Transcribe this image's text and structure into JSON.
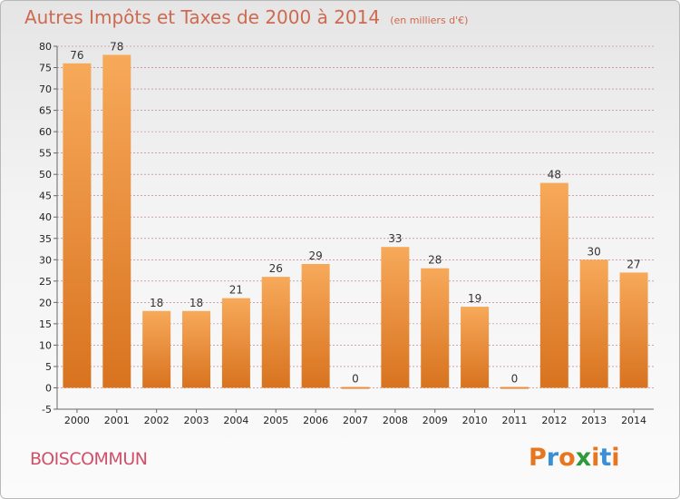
{
  "page": {
    "title": "Autres Impôts et Taxes de 2000 à 2014",
    "unit": "(en milliers d'€)",
    "commune": "BOISCOMMUN",
    "brand": "Proxiti",
    "brand_letters": [
      "P",
      "r",
      "o",
      "x",
      "i",
      "t",
      "i"
    ],
    "brand_colors": [
      "#e8761e",
      "#3a8fd6",
      "#e8761e",
      "#2f9a3c",
      "#e8761e",
      "#3a8fd6",
      "#e8761e"
    ]
  },
  "colors": {
    "bar_light": "#f7a95a",
    "bar_dark": "#d8731f",
    "grid": "#c06a80",
    "axis": "#666666",
    "title": "#cd6a50",
    "commune": "#d0506a"
  },
  "chart_data": {
    "type": "bar",
    "categories": [
      "2000",
      "2001",
      "2002",
      "2003",
      "2004",
      "2005",
      "2006",
      "2007",
      "2008",
      "2009",
      "2010",
      "2011",
      "2012",
      "2013",
      "2014"
    ],
    "values": [
      76,
      78,
      18,
      18,
      21,
      26,
      29,
      0,
      33,
      28,
      19,
      0,
      48,
      30,
      27
    ],
    "value_labels": [
      "76",
      "78",
      "18",
      "18",
      "21",
      "26",
      "29",
      "0",
      "33",
      "28",
      "19",
      "0",
      "48",
      "30",
      "27"
    ],
    "yticks": [
      -5,
      0,
      5,
      10,
      15,
      20,
      25,
      30,
      35,
      40,
      45,
      50,
      55,
      60,
      65,
      70,
      75,
      80
    ],
    "ytick_labels": [
      "-5",
      "0",
      "5",
      "10",
      "15",
      "20",
      "25",
      "30",
      "35",
      "40",
      "45",
      "50",
      "55",
      "60",
      "65",
      "70",
      "75",
      "80"
    ],
    "ylim": [
      -5,
      80
    ],
    "grid": "horizontal dashed",
    "xlabel": "",
    "ylabel": ""
  }
}
